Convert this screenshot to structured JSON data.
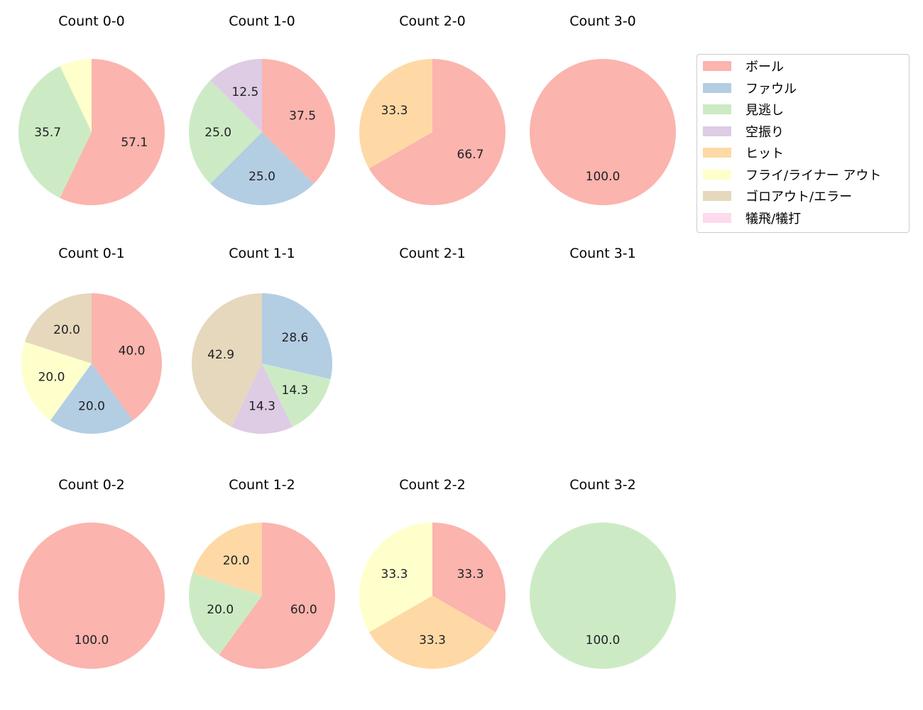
{
  "chart_data": {
    "type": "pie",
    "legend": {
      "placement": "upper-right",
      "entries": [
        {
          "name": "ボール",
          "color": "#fbb4ae"
        },
        {
          "name": "ファウル",
          "color": "#b3cde3"
        },
        {
          "name": "見逃し",
          "color": "#ccebc5"
        },
        {
          "name": "空振り",
          "color": "#decbe4"
        },
        {
          "name": "ヒット",
          "color": "#fed9a6"
        },
        {
          "name": "フライ/ライナー アウト",
          "color": "#ffffcc"
        },
        {
          "name": "ゴロアウト/エラー",
          "color": "#e5d8bd"
        },
        {
          "name": "犠飛/犠打",
          "color": "#fddaec"
        }
      ]
    },
    "start_angle": 90,
    "direction": "clockwise",
    "charts": [
      {
        "title": "Count 0-0",
        "slices": [
          {
            "category": "ボール",
            "value": 57.1
          },
          {
            "category": "見逃し",
            "value": 35.7
          },
          {
            "category": "フライ/ライナー アウト",
            "value": 7.1,
            "label_hidden": true
          }
        ]
      },
      {
        "title": "Count 1-0",
        "slices": [
          {
            "category": "ボール",
            "value": 37.5
          },
          {
            "category": "ファウル",
            "value": 25.0
          },
          {
            "category": "見逃し",
            "value": 25.0
          },
          {
            "category": "空振り",
            "value": 12.5
          }
        ]
      },
      {
        "title": "Count 2-0",
        "slices": [
          {
            "category": "ボール",
            "value": 66.7
          },
          {
            "category": "ヒット",
            "value": 33.3
          }
        ]
      },
      {
        "title": "Count 3-0",
        "slices": [
          {
            "category": "ボール",
            "value": 100.0
          }
        ]
      },
      {
        "title": "Count 0-1",
        "slices": [
          {
            "category": "ボール",
            "value": 40.0
          },
          {
            "category": "ファウル",
            "value": 20.0
          },
          {
            "category": "フライ/ライナー アウト",
            "value": 20.0
          },
          {
            "category": "ゴロアウト/エラー",
            "value": 20.0
          }
        ]
      },
      {
        "title": "Count 1-1",
        "slices": [
          {
            "category": "ファウル",
            "value": 28.6
          },
          {
            "category": "見逃し",
            "value": 14.3
          },
          {
            "category": "空振り",
            "value": 14.3
          },
          {
            "category": "ゴロアウト/エラー",
            "value": 42.9
          }
        ]
      },
      {
        "title": "Count 2-1",
        "slices": []
      },
      {
        "title": "Count 3-1",
        "slices": []
      },
      {
        "title": "Count 0-2",
        "slices": [
          {
            "category": "ボール",
            "value": 100.0
          }
        ]
      },
      {
        "title": "Count 1-2",
        "slices": [
          {
            "category": "ボール",
            "value": 60.0
          },
          {
            "category": "見逃し",
            "value": 20.0
          },
          {
            "category": "ヒット",
            "value": 20.0
          }
        ]
      },
      {
        "title": "Count 2-2",
        "slices": [
          {
            "category": "ボール",
            "value": 33.3
          },
          {
            "category": "ヒット",
            "value": 33.3
          },
          {
            "category": "フライ/ライナー アウト",
            "value": 33.3
          }
        ]
      },
      {
        "title": "Count 3-2",
        "slices": [
          {
            "category": "見逃し",
            "value": 100.0
          }
        ]
      }
    ]
  }
}
